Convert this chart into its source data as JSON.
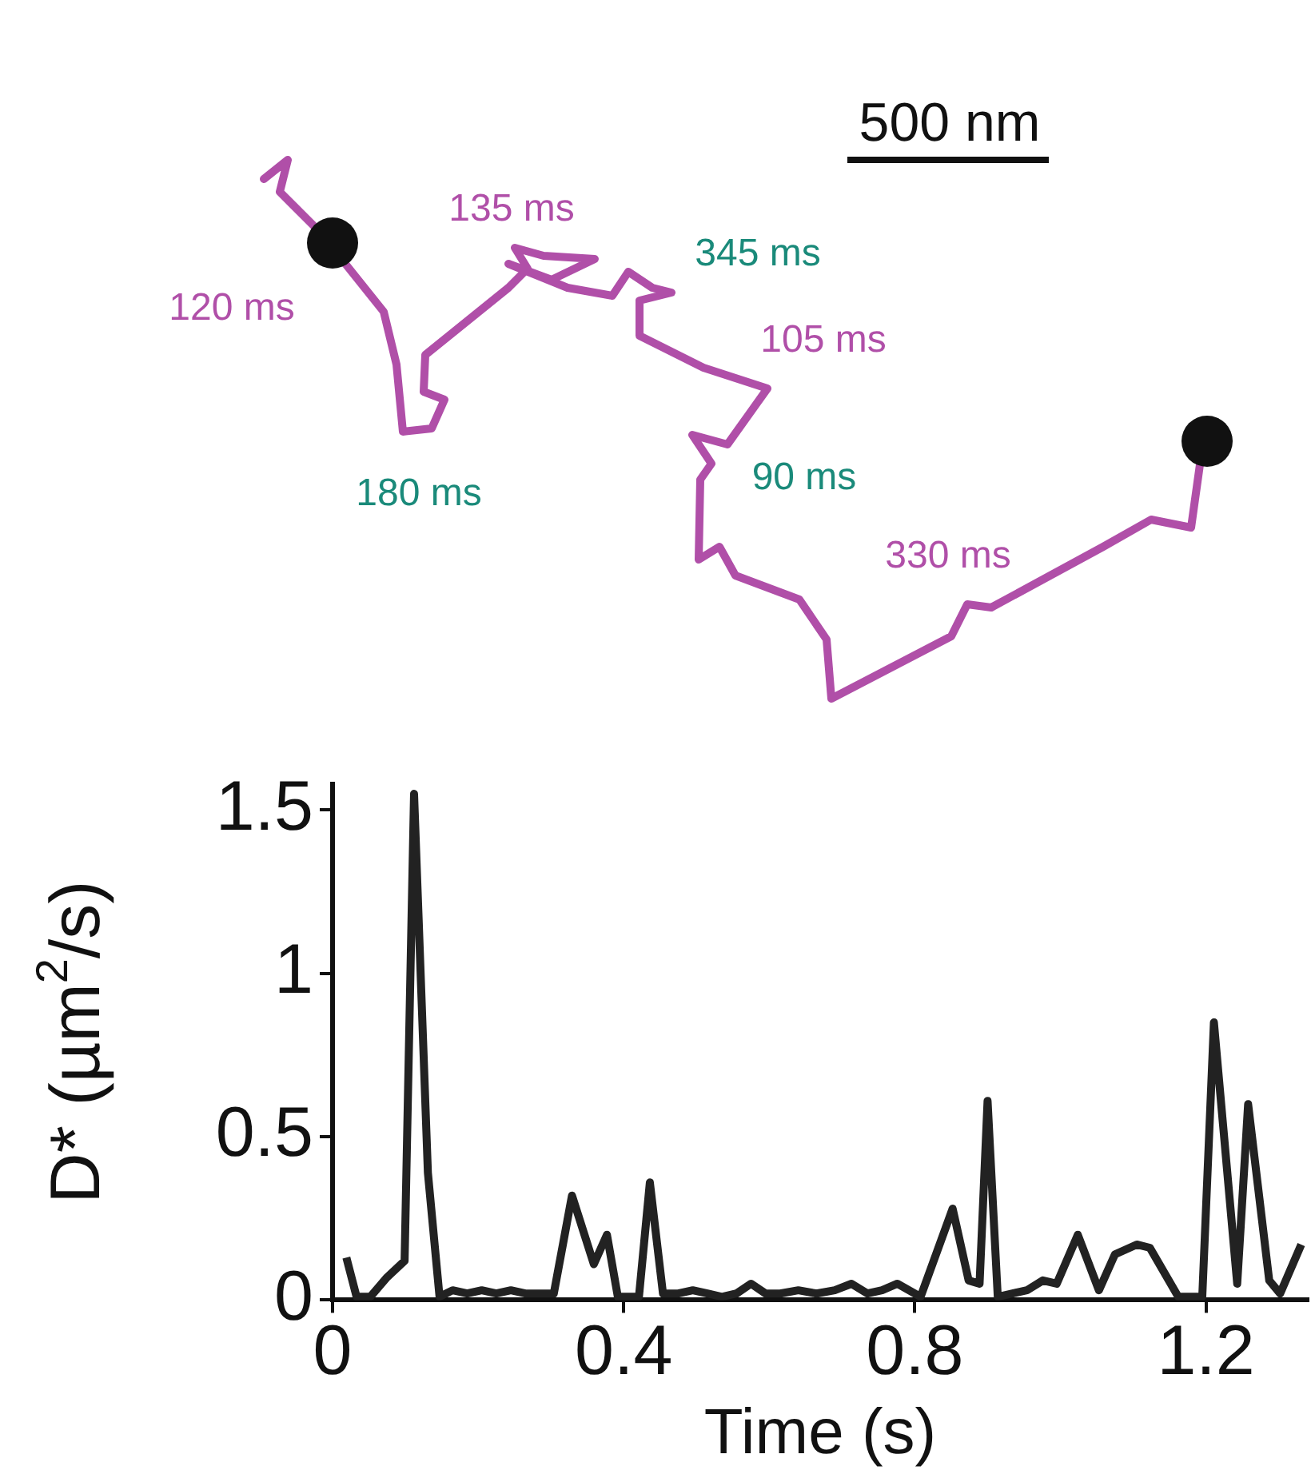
{
  "chart_data": [
    {
      "type": "other",
      "annotations": [
        "500 nm",
        "120 ms",
        "135 ms",
        "345 ms",
        "105 ms",
        "180 ms",
        "90 ms",
        "330 ms"
      ]
    },
    {
      "type": "line",
      "xlabel": "Time (s)",
      "ylabel": "D* (µm$^{2}$/s)",
      "color": "#222222",
      "grid": false,
      "legend": false,
      "marker": "none",
      "x": [
        0.019,
        0.033,
        0.052,
        0.075,
        0.099,
        0.112,
        0.131,
        0.147,
        0.165,
        0.185,
        0.205,
        0.225,
        0.245,
        0.265,
        0.285,
        0.304,
        0.329,
        0.359,
        0.377,
        0.392,
        0.421,
        0.436,
        0.454,
        0.475,
        0.495,
        0.515,
        0.535,
        0.555,
        0.575,
        0.595,
        0.615,
        0.64,
        0.665,
        0.69,
        0.713,
        0.735,
        0.755,
        0.776,
        0.808,
        0.852,
        0.874,
        0.889,
        0.9,
        0.914,
        0.954,
        0.976,
        0.995,
        1.024,
        1.053,
        1.075,
        1.105,
        1.123,
        1.162,
        1.195,
        1.211,
        1.243,
        1.258,
        1.287,
        1.302,
        1.331
      ],
      "values": [
        0.13,
        0.01,
        0.01,
        0.07,
        0.12,
        1.55,
        0.39,
        0.01,
        0.03,
        0.02,
        0.03,
        0.02,
        0.03,
        0.02,
        0.02,
        0.02,
        0.32,
        0.11,
        0.2,
        0.01,
        0.01,
        0.36,
        0.02,
        0.02,
        0.03,
        0.02,
        0.01,
        0.02,
        0.05,
        0.02,
        0.02,
        0.03,
        0.02,
        0.03,
        0.05,
        0.02,
        0.03,
        0.05,
        0.01,
        0.28,
        0.06,
        0.05,
        0.61,
        0.01,
        0.03,
        0.06,
        0.05,
        0.2,
        0.03,
        0.14,
        0.17,
        0.16,
        0.01,
        0.01,
        0.85,
        0.05,
        0.6,
        0.06,
        0.02,
        0.17
      ],
      "xlim": [
        0,
        1.34
      ],
      "ylim": [
        0,
        1.58
      ],
      "xticks": [
        0,
        0.4,
        0.8,
        1.2
      ],
      "yticks": [
        0,
        0.5,
        1,
        1.5
      ]
    }
  ]
}
